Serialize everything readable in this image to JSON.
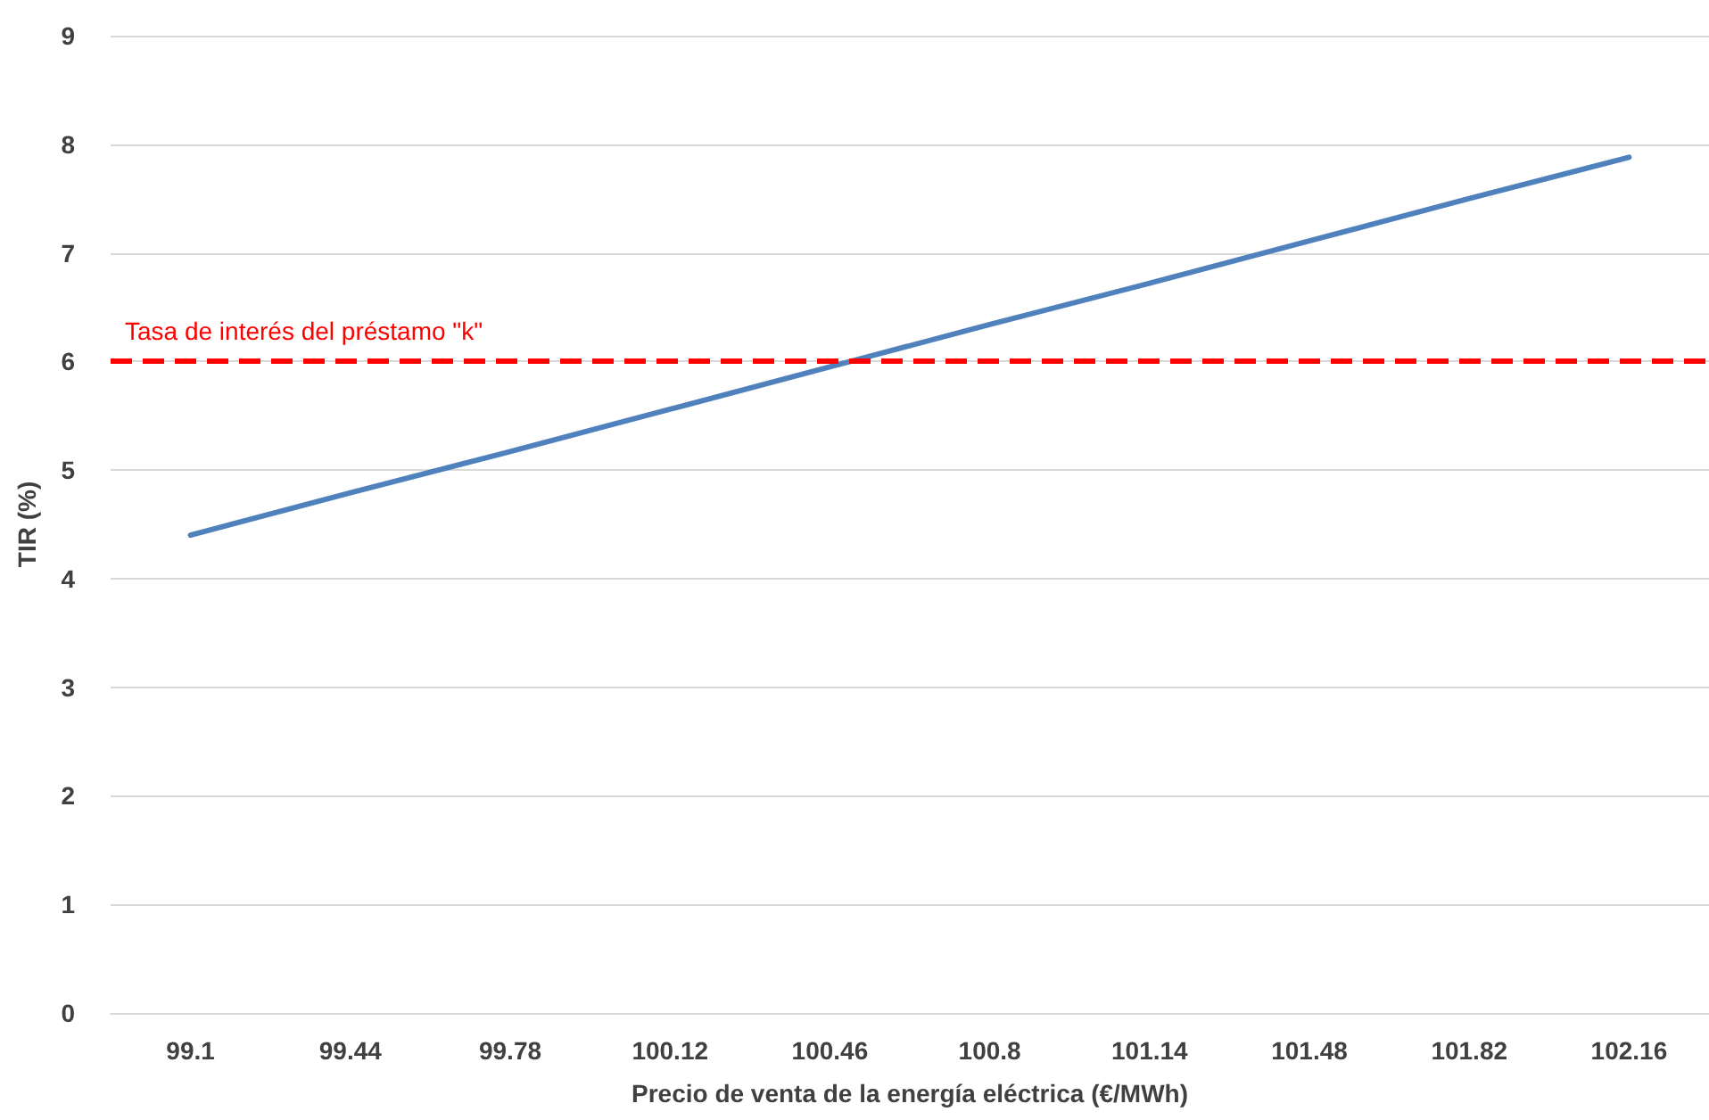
{
  "chart_data": {
    "type": "line",
    "xlabel": "Precio de venta de la energía eléctrica (€/MWh)",
    "ylabel": "TIR (%)",
    "categories": [
      "99.1",
      "99.44",
      "99.78",
      "100.12",
      "100.46",
      "100.8",
      "101.14",
      "101.48",
      "101.82",
      "102.16"
    ],
    "series": [
      {
        "color": "#4f81bd",
        "values": [
          4.4,
          4.79,
          5.17,
          5.56,
          5.95,
          6.34,
          6.72,
          7.11,
          7.5,
          7.88
        ]
      }
    ],
    "ylim": [
      0,
      9
    ],
    "yticks": [
      0,
      1,
      2,
      3,
      4,
      5,
      6,
      7,
      8,
      9
    ],
    "grid": "y",
    "marker": "none",
    "line_style": "solid",
    "ref_lines": [
      {
        "axis": "y",
        "value": 6,
        "label": "Tasa de interés del préstamo \"k\"",
        "color": "#ff0000",
        "line_style": "dashed"
      }
    ]
  }
}
